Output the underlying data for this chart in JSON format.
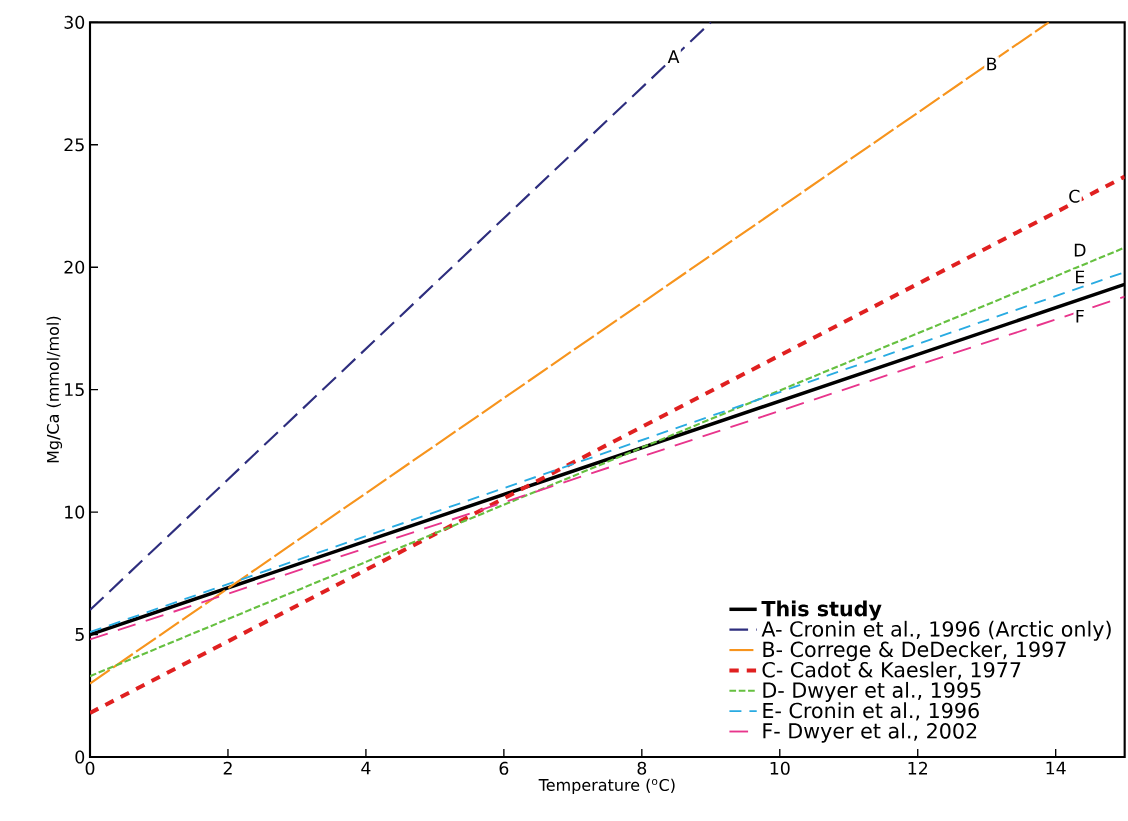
{
  "chart_data": {
    "type": "line",
    "xlabel": "Temperature ($^{o}$C)",
    "ylabel": "Mg/Ca (mmol/mol)",
    "xlim": [
      0,
      15
    ],
    "ylim": [
      0,
      30
    ],
    "xticks": [
      0,
      2,
      4,
      6,
      8,
      10,
      12,
      14
    ],
    "yticks": [
      0,
      5,
      10,
      15,
      20,
      25,
      30
    ],
    "legend": "bottom right",
    "grid": false,
    "marker": "none",
    "series": [
      {
        "name": "This study",
        "color": "#000000",
        "x": [
          0,
          15
        ],
        "values": [
          5.0,
          19.3
        ],
        "line_style": "solid"
      },
      {
        "name": "A- Cronin et al., 1996 (Arctic only)",
        "color": "#2e2e7e",
        "x": [
          0,
          9
        ],
        "values": [
          6.0,
          30
        ],
        "line_style": "dashed"
      },
      {
        "name": "B- Correge & DeDecker, 1997",
        "color": "#f7941d",
        "x": [
          0,
          13.9
        ],
        "values": [
          3.0,
          30
        ],
        "line_style": "dashed"
      },
      {
        "name": "C- Cadot & Kaesler, 1977",
        "color": "#e02020",
        "x": [
          0,
          15
        ],
        "values": [
          1.8,
          23.7
        ],
        "line_style": "dashed"
      },
      {
        "name": "D- Dwyer et al., 1995",
        "color": "#66c040",
        "x": [
          0,
          15
        ],
        "values": [
          3.3,
          20.8
        ],
        "line_style": "dotted"
      },
      {
        "name": "E- Cronin et al., 1996",
        "color": "#29abe2",
        "x": [
          0,
          15
        ],
        "values": [
          5.1,
          19.8
        ],
        "line_style": "dashed"
      },
      {
        "name": "F- Dwyer et al., 2002",
        "color": "#e8358c",
        "x": [
          0,
          15
        ],
        "values": [
          4.8,
          18.8
        ],
        "line_style": "dashed"
      }
    ],
    "annotations": [
      {
        "text": "A",
        "x": 8.46,
        "y": 28.6
      },
      {
        "text": "B",
        "x": 13.07,
        "y": 28.3
      },
      {
        "text": "C",
        "x": 14.27,
        "y": 22.9
      },
      {
        "text": "D",
        "x": 14.35,
        "y": 20.7
      },
      {
        "text": "E",
        "x": 14.35,
        "y": 19.6
      },
      {
        "text": "F",
        "x": 14.35,
        "y": 18.0
      }
    ]
  }
}
